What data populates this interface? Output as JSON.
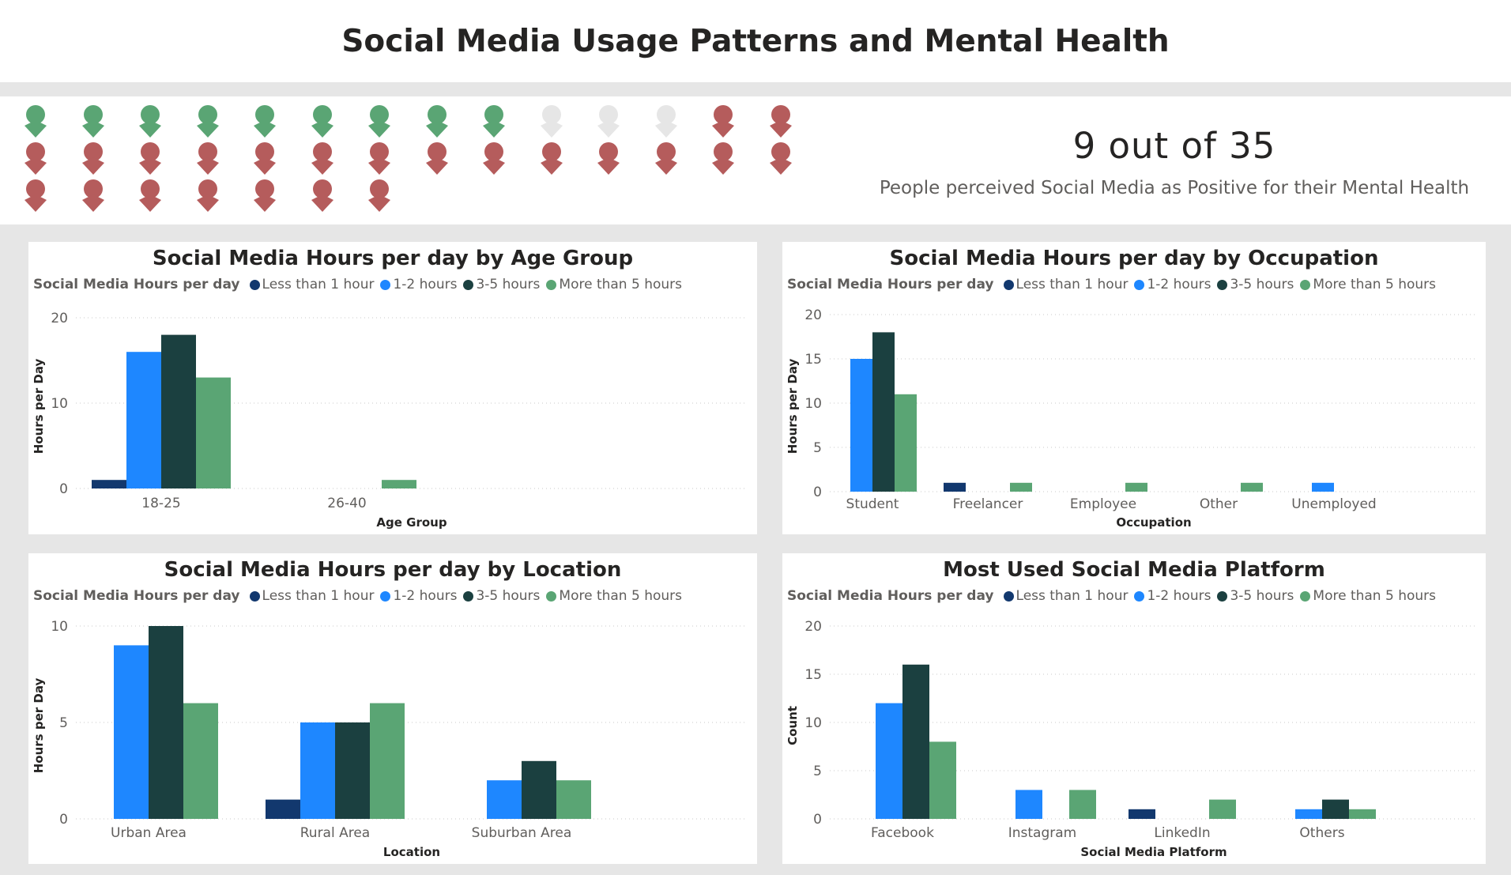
{
  "page_title": "Social Media Usage Patterns and Mental Health",
  "kpi": {
    "value": "9 out of 35",
    "label": "People perceived Social Media as Positive for their Mental Health"
  },
  "pictogram": {
    "total": 35,
    "rows": [
      [
        "positive",
        "positive",
        "positive",
        "positive",
        "positive",
        "positive",
        "positive",
        "positive",
        "positive",
        "neutral",
        "neutral",
        "neutral",
        "negative",
        "negative"
      ],
      [
        "negative",
        "negative",
        "negative",
        "negative",
        "negative",
        "negative",
        "negative",
        "negative",
        "negative",
        "negative",
        "negative",
        "negative",
        "negative",
        "negative"
      ],
      [
        "negative",
        "negative",
        "negative",
        "negative",
        "negative",
        "negative",
        "negative"
      ]
    ],
    "colors": {
      "positive": "#5aa574",
      "neutral": "#e6e6e6",
      "negative": "#b55c5c"
    },
    "icon": "person-icon"
  },
  "legend": {
    "title": "Social Media Hours per day",
    "items": [
      {
        "label": "Less than 1 hour",
        "color": "#12386e"
      },
      {
        "label": "1-2 hours",
        "color": "#1e87ff"
      },
      {
        "label": "3-5 hours",
        "color": "#1b4040"
      },
      {
        "label": "More than 5 hours",
        "color": "#5aa574"
      }
    ]
  },
  "chart_data": [
    {
      "type": "bar",
      "title": "Social Media Hours per day by Age Group",
      "xlabel": "Age Group",
      "ylabel": "Hours per Day",
      "categories": [
        "18-25",
        "26-40"
      ],
      "series": [
        {
          "name": "Less than 1 hour",
          "values": [
            1,
            0
          ]
        },
        {
          "name": "1-2 hours",
          "values": [
            16,
            0
          ]
        },
        {
          "name": "3-5 hours",
          "values": [
            18,
            0
          ]
        },
        {
          "name": "More than 5 hours",
          "values": [
            13,
            1
          ]
        }
      ],
      "ylim": [
        0,
        20
      ],
      "yticks": [
        0,
        10,
        20
      ],
      "grid": true,
      "legend": "top-left"
    },
    {
      "type": "bar",
      "title": "Social Media Hours per day by Occupation",
      "xlabel": "Occupation",
      "ylabel": "Hours per Day",
      "categories": [
        "Student",
        "Freelancer",
        "Employee",
        "Other",
        "Unemployed"
      ],
      "series": [
        {
          "name": "Less than 1 hour",
          "values": [
            0,
            1,
            0,
            0,
            0
          ]
        },
        {
          "name": "1-2 hours",
          "values": [
            15,
            0,
            0,
            0,
            1
          ]
        },
        {
          "name": "3-5 hours",
          "values": [
            18,
            0,
            0,
            0,
            0
          ]
        },
        {
          "name": "More than 5 hours",
          "values": [
            11,
            1,
            1,
            1,
            0
          ]
        }
      ],
      "ylim": [
        0,
        20
      ],
      "yticks": [
        0,
        5,
        10,
        15,
        20
      ],
      "grid": true,
      "legend": "top-left"
    },
    {
      "type": "bar",
      "title": "Social Media Hours per day by Location",
      "xlabel": "Location",
      "ylabel": "Hours per Day",
      "categories": [
        "Urban Area",
        "Rural Area",
        "Suburban Area"
      ],
      "series": [
        {
          "name": "Less than 1 hour",
          "values": [
            0,
            1,
            0
          ]
        },
        {
          "name": "1-2 hours",
          "values": [
            9,
            5,
            2
          ]
        },
        {
          "name": "3-5 hours",
          "values": [
            10,
            5,
            3
          ]
        },
        {
          "name": "More than 5 hours",
          "values": [
            6,
            6,
            2
          ]
        }
      ],
      "ylim": [
        0,
        10
      ],
      "yticks": [
        0,
        5,
        10
      ],
      "grid": true,
      "legend": "top-left"
    },
    {
      "type": "bar",
      "title": "Most Used Social Media Platform",
      "xlabel": "Social Media Platform",
      "ylabel": "Count",
      "categories": [
        "Facebook",
        "Instagram",
        "LinkedIn",
        "Others"
      ],
      "series": [
        {
          "name": "Less than 1 hour",
          "values": [
            0,
            0,
            1,
            0
          ]
        },
        {
          "name": "1-2 hours",
          "values": [
            12,
            3,
            0,
            1
          ]
        },
        {
          "name": "3-5 hours",
          "values": [
            16,
            0,
            0,
            2
          ]
        },
        {
          "name": "More than 5 hours",
          "values": [
            8,
            3,
            2,
            1
          ]
        }
      ],
      "ylim": [
        0,
        20
      ],
      "yticks": [
        0,
        5,
        10,
        15,
        20
      ],
      "grid": true,
      "legend": "top-left"
    }
  ]
}
